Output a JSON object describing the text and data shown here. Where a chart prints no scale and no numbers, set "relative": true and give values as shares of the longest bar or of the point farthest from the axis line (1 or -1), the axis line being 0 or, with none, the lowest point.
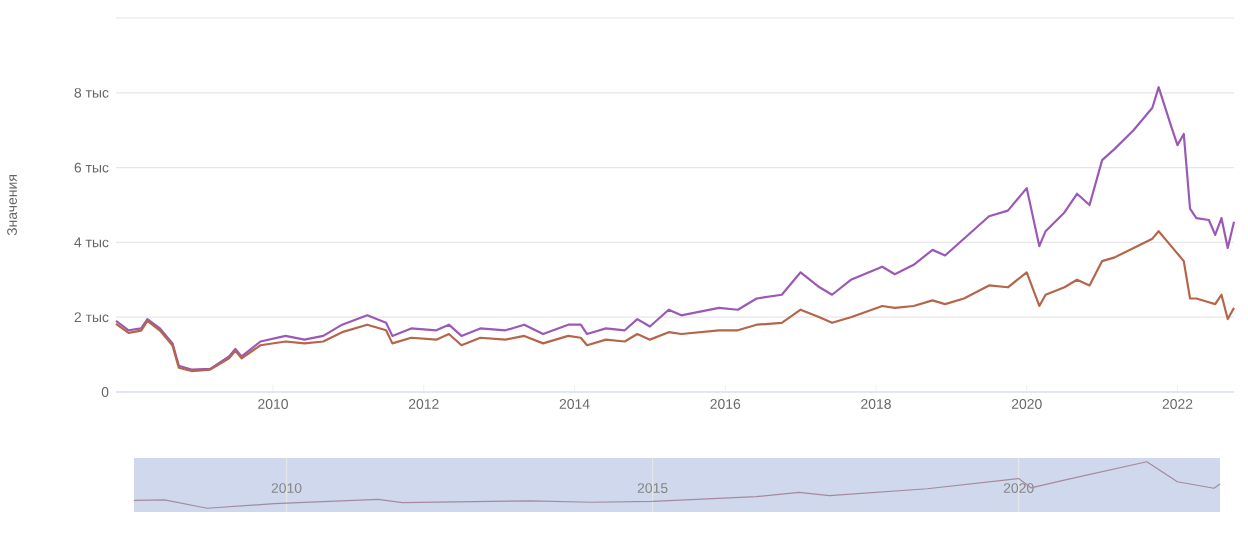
{
  "chart_data": [
    {
      "type": "line",
      "ylabel": "Значения",
      "grid": "y",
      "xlim": [
        "2007-12",
        "2022-10"
      ],
      "xticks": [
        "2010",
        "2012",
        "2014",
        "2016",
        "2018",
        "2020",
        "2022"
      ],
      "ylim": [
        0,
        10
      ],
      "yticks": [
        0,
        {
          "value": 2,
          "label": "2 тыс"
        },
        {
          "value": 4,
          "label": "4 тыс"
        },
        {
          "value": 6,
          "label": "6 тыс"
        },
        {
          "value": 8,
          "label": "8 тыс"
        },
        {
          "value": 10,
          "label": null
        }
      ],
      "x": [
        "2007-12",
        "2008-02",
        "2008-04",
        "2008-05",
        "2008-07",
        "2008-09",
        "2008-10",
        "2008-12",
        "2009-03",
        "2009-06",
        "2009-07",
        "2009-08",
        "2009-11",
        "2010-03",
        "2010-06",
        "2010-09",
        "2010-12",
        "2011-04",
        "2011-07",
        "2011-08",
        "2011-11",
        "2012-03",
        "2012-05",
        "2012-07",
        "2012-10",
        "2013-02",
        "2013-05",
        "2013-08",
        "2013-12",
        "2014-02",
        "2014-03",
        "2014-06",
        "2014-09",
        "2014-11",
        "2015-01",
        "2015-04",
        "2015-06",
        "2015-12",
        "2016-03",
        "2016-06",
        "2016-10",
        "2017-01",
        "2017-04",
        "2017-06",
        "2017-09",
        "2018-02",
        "2018-04",
        "2018-07",
        "2018-10",
        "2018-12",
        "2019-03",
        "2019-07",
        "2019-10",
        "2020-01",
        "2020-03",
        "2020-04",
        "2020-07",
        "2020-09",
        "2020-11",
        "2021-01",
        "2021-03",
        "2021-06",
        "2021-09",
        "2021-10",
        "2021-12",
        "2022-01",
        "2022-02",
        "2022-03",
        "2022-04",
        "2022-06",
        "2022-07",
        "2022-08",
        "2022-09",
        "2022-10"
      ],
      "series": [
        {
          "color": "#9b59b6",
          "values": [
            1.9,
            1.65,
            1.7,
            1.95,
            1.7,
            1.3,
            0.7,
            0.6,
            0.62,
            0.95,
            1.15,
            0.95,
            1.35,
            1.5,
            1.4,
            1.5,
            1.8,
            2.05,
            1.85,
            1.5,
            1.7,
            1.65,
            1.8,
            1.5,
            1.7,
            1.65,
            1.8,
            1.55,
            1.8,
            1.8,
            1.55,
            1.7,
            1.65,
            1.95,
            1.75,
            2.2,
            2.05,
            2.25,
            2.2,
            2.5,
            2.6,
            3.2,
            2.8,
            2.6,
            3.0,
            3.35,
            3.15,
            3.4,
            3.8,
            3.65,
            4.1,
            4.7,
            4.85,
            5.45,
            3.9,
            4.3,
            4.8,
            5.3,
            5.0,
            6.2,
            6.5,
            7.0,
            7.6,
            8.15,
            7.1,
            6.6,
            6.9,
            4.9,
            4.65,
            4.6,
            4.2,
            4.65,
            3.85,
            4.55
          ]
        },
        {
          "color": "#b5654a",
          "values": [
            1.82,
            1.58,
            1.64,
            1.9,
            1.64,
            1.24,
            0.65,
            0.56,
            0.6,
            0.9,
            1.1,
            0.9,
            1.25,
            1.35,
            1.3,
            1.35,
            1.6,
            1.8,
            1.65,
            1.3,
            1.45,
            1.4,
            1.55,
            1.25,
            1.45,
            1.4,
            1.5,
            1.3,
            1.5,
            1.45,
            1.25,
            1.4,
            1.35,
            1.55,
            1.4,
            1.6,
            1.55,
            1.65,
            1.65,
            1.8,
            1.85,
            2.2,
            2.0,
            1.85,
            2.0,
            2.3,
            2.25,
            2.3,
            2.45,
            2.35,
            2.5,
            2.85,
            2.8,
            3.2,
            2.3,
            2.6,
            2.8,
            3.0,
            2.85,
            3.5,
            3.6,
            3.85,
            4.1,
            4.3,
            3.9,
            3.7,
            3.5,
            2.5,
            2.5,
            2.4,
            2.35,
            2.6,
            1.95,
            2.25
          ]
        }
      ]
    },
    {
      "type": "line",
      "relative": true,
      "grid": "x",
      "xlim": [
        "2007-12",
        "2022-10"
      ],
      "xticks": [
        "2010",
        "2015",
        "2020"
      ],
      "x": [
        "2007-12",
        "2008-05",
        "2008-12",
        "2009-11",
        "2011-04",
        "2011-08",
        "2013-05",
        "2014-03",
        "2015-01",
        "2016-06",
        "2017-01",
        "2017-06",
        "2018-10",
        "2020-01",
        "2020-03",
        "2020-09",
        "2021-10",
        "2022-03",
        "2022-09",
        "2022-10"
      ],
      "series": [
        {
          "color": "#a58a9c",
          "values": [
            0.17,
            0.18,
            0,
            0.1,
            0.19,
            0.12,
            0.16,
            0.13,
            0.15,
            0.25,
            0.34,
            0.27,
            0.42,
            0.64,
            0.44,
            0.62,
            1,
            0.57,
            0.43,
            0.52
          ]
        }
      ]
    }
  ]
}
